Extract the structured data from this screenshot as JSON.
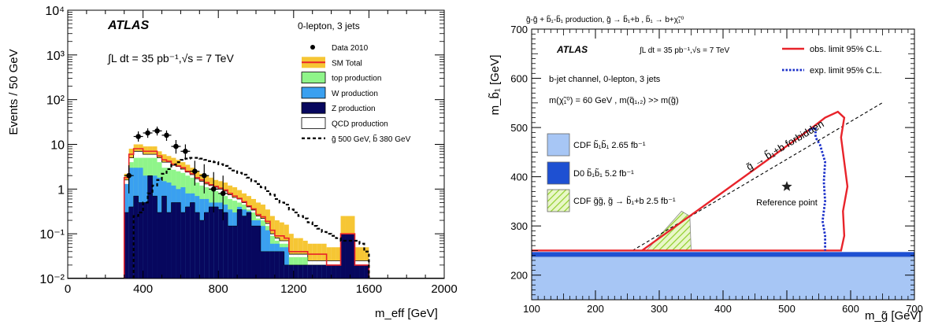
{
  "chart_data": [
    {
      "type": "bar",
      "experiment": "ATLAS",
      "luminosity": "∫L dt = 35 pb⁻¹,√s = 7 TeV",
      "channel": "0-lepton, 3 jets",
      "xlabel": "m_eff [GeV]",
      "ylabel": "Events / 50 GeV",
      "xlim": [
        0,
        2000
      ],
      "ylim": [
        0.01,
        10000
      ],
      "log_y": true,
      "x_ticks": [
        "0",
        "400",
        "800",
        "1200",
        "1600",
        "2000"
      ],
      "y_ticks": [
        "10⁻²",
        "10⁻¹",
        "1",
        "10",
        "10²",
        "10³",
        "10⁴"
      ],
      "legend_position": "top-right",
      "legend": [
        {
          "label": "Data 2010",
          "kind": "marker",
          "color": "#000000"
        },
        {
          "label": "SM Total",
          "kind": "line-fill",
          "color": "#e8232a",
          "fill": "#f6c634"
        },
        {
          "label": "top production",
          "kind": "fill",
          "color": "#8ff58a"
        },
        {
          "label": "W production",
          "kind": "fill",
          "color": "#3aa0f0"
        },
        {
          "label": "Z production",
          "kind": "fill",
          "color": "#07075e"
        },
        {
          "label": "QCD production",
          "kind": "fill",
          "color": "#ffffff"
        },
        {
          "label": "g̃ 500 GeV, b̃ 380 GeV",
          "kind": "dashed",
          "color": "#000000"
        }
      ],
      "bin_edges": [
        300,
        325,
        350,
        375,
        400,
        425,
        450,
        475,
        500,
        525,
        550,
        575,
        600,
        625,
        650,
        675,
        700,
        725,
        750,
        775,
        800,
        825,
        850,
        875,
        900,
        925,
        950,
        975,
        1000,
        1025,
        1050,
        1075,
        1100,
        1125,
        1150,
        1175,
        1200,
        1225,
        1250,
        1275,
        1300,
        1325,
        1350,
        1375,
        1400,
        1425,
        1450,
        1475,
        1500,
        1525,
        1550,
        1575,
        1600
      ],
      "series": [
        {
          "name": "Z production",
          "color": "#07075e",
          "values": [
            0.3,
            0.4,
            0.7,
            0.5,
            0.5,
            2,
            0.7,
            0.3,
            0.7,
            0.3,
            0.5,
            0.5,
            0.3,
            0.4,
            0.5,
            0.3,
            0.2,
            0.3,
            0.4,
            0.4,
            0.35,
            0.3,
            0.15,
            0.15,
            0.35,
            0.25,
            0.3,
            0.15,
            0.15,
            0.04,
            0.04,
            0.04,
            0.04,
            0.04,
            0.02,
            0.02,
            0.02,
            0.02,
            0.02,
            0.02,
            0.02,
            0.02,
            0.02,
            0.02,
            0.02,
            0.02,
            0.1,
            0.1,
            0.1,
            0.02,
            0.02,
            0.02
          ]
        },
        {
          "name": "W production",
          "color": "#3aa0f0",
          "values": [
            1.3,
            3,
            3,
            3,
            2,
            2,
            2,
            1.8,
            1.5,
            1.4,
            1.2,
            1.0,
            1.1,
            0.8,
            0.8,
            0.7,
            0.6,
            0.6,
            0.5,
            0.5,
            0.5,
            0.45,
            0.35,
            0.3,
            0.4,
            0.35,
            0.32,
            0.2,
            0.2,
            0.15,
            0.12,
            0.06,
            0.06,
            0.05,
            0.05,
            0.02,
            0.02,
            0.02,
            0.02,
            0.02,
            0.02,
            0.02,
            0.02,
            0.02,
            0.02,
            0.02,
            0.1,
            0.1,
            0.1,
            0.02,
            0.02,
            0.02
          ]
        },
        {
          "name": "top production",
          "color": "#8ff58a",
          "values": [
            1.3,
            4,
            5,
            5,
            5,
            5,
            5,
            4,
            3,
            3,
            2.7,
            2.5,
            2.3,
            2,
            1.8,
            1.4,
            1.2,
            1.1,
            1,
            0.9,
            0.8,
            0.7,
            0.6,
            0.55,
            0.5,
            0.45,
            0.35,
            0.3,
            0.22,
            0.2,
            0.15,
            0.09,
            0.07,
            0.06,
            0.06,
            0.03,
            0.03,
            0.03,
            0.03,
            0.02,
            0.02,
            0.02,
            0.02,
            0.02,
            0.02,
            0.02,
            0.1,
            0.1,
            0.1,
            0.02,
            0.02,
            0.02
          ]
        },
        {
          "name": "QCD production",
          "color": "#ffffff",
          "values": [
            1.6,
            5,
            7,
            7,
            6,
            6,
            6,
            5,
            4,
            4,
            3.4,
            3.2,
            2.8,
            2.4,
            2.1,
            1.7,
            1.5,
            1.3,
            1.2,
            1.1,
            1,
            0.9,
            0.75,
            0.65,
            0.6,
            0.5,
            0.4,
            0.34,
            0.25,
            0.22,
            0.17,
            0.1,
            0.08,
            0.07,
            0.07,
            0.035,
            0.035,
            0.035,
            0.035,
            0.025,
            0.025,
            0.025,
            0.025,
            0.025,
            0.025,
            0.025,
            0.1,
            0.1,
            0.1,
            0.025,
            0.025,
            0.025
          ]
        },
        {
          "name": "SM Total",
          "color": "#e8232a",
          "values": [
            1.8,
            6,
            8,
            8,
            7,
            7,
            7,
            5.5,
            4.5,
            4.2,
            3.6,
            3.3,
            3,
            2.5,
            2.2,
            1.8,
            1.6,
            1.4,
            1.25,
            1.15,
            1.05,
            0.95,
            0.8,
            0.7,
            0.62,
            0.52,
            0.42,
            0.36,
            0.27,
            0.24,
            0.19,
            0.12,
            0.09,
            0.09,
            0.08,
            0.04,
            0.04,
            0.04,
            0.04,
            0.035,
            0.035,
            0.035,
            0.035,
            0.02,
            0.02,
            0.02,
            0.1,
            0.1,
            0.1,
            0.02,
            0.02,
            0.02
          ]
        },
        {
          "name": "SM Total uncertainty",
          "color": "#f6c634",
          "values": [
            2.2,
            8,
            10,
            10,
            9,
            9,
            9,
            7,
            6,
            5.5,
            5,
            4.5,
            4,
            3.5,
            3,
            2.5,
            2.2,
            2,
            1.8,
            1.6,
            1.5,
            1.4,
            1.2,
            1.1,
            0.95,
            0.8,
            0.7,
            0.6,
            0.5,
            0.45,
            0.35,
            0.25,
            0.2,
            0.18,
            0.16,
            0.1,
            0.08,
            0.08,
            0.07,
            0.06,
            0.06,
            0.06,
            0.06,
            0.05,
            0.05,
            0.05,
            0.25,
            0.25,
            0.25,
            0.05,
            0.05,
            0.05
          ]
        }
      ],
      "signal": {
        "name": "g̃ 500 GeV, b̃ 380 GeV",
        "bin_edges": [
          350,
          375,
          400,
          425,
          450,
          475,
          500,
          525,
          550,
          575,
          600,
          625,
          650,
          675,
          700,
          725,
          750,
          775,
          800,
          825,
          850,
          875,
          900,
          925,
          950,
          975,
          1000,
          1025,
          1050,
          1075,
          1100,
          1125,
          1150,
          1175,
          1200,
          1225,
          1250,
          1275,
          1300,
          1325,
          1350,
          1375,
          1400,
          1425,
          1450,
          1475,
          1500,
          1525,
          1550,
          1575,
          1600
        ],
        "values": [
          0.25,
          0.3,
          0.5,
          0.8,
          1.2,
          1.6,
          2.2,
          2.8,
          3.5,
          4.0,
          4.5,
          4.8,
          5.0,
          5.0,
          4.8,
          4.5,
          4.2,
          4.0,
          3.6,
          3.3,
          2.9,
          2.6,
          2.3,
          2.1,
          1.8,
          1.5,
          1.3,
          1.1,
          0.9,
          0.75,
          0.6,
          0.5,
          0.45,
          0.35,
          0.3,
          0.25,
          0.22,
          0.18,
          0.15,
          0.13,
          0.11,
          0.1,
          0.09,
          0.08,
          0.07,
          0.07,
          0.07,
          0.07,
          0.06,
          0.04
        ]
      },
      "data_points": {
        "name": "Data 2010",
        "x": [
          325,
          375,
          425,
          475,
          525,
          575,
          625,
          675,
          725,
          775,
          825
        ],
        "y": [
          2,
          15,
          18,
          20,
          16,
          9,
          7,
          2.5,
          2,
          1,
          0.8
        ],
        "err_lo": [
          1.2,
          3.5,
          4,
          4.2,
          4,
          2.8,
          2.5,
          1.3,
          1.2,
          0.7,
          0.6
        ],
        "err_hi": [
          1.4,
          4.5,
          4.8,
          5,
          4.5,
          3.5,
          3,
          1.8,
          1.6,
          1.4,
          1.2
        ]
      }
    },
    {
      "type": "line",
      "title": "g̃-g̃ + b̃₁-b̃₁ production, g̃ → b̃₁+b , b̃₁ → b+χ̃₁⁰",
      "experiment": "ATLAS",
      "luminosity": "∫L dt = 35 pb⁻¹,√s = 7 TeV",
      "channel": "b-jet channel, 0-lepton, 3 jets",
      "assumption": "m(χ̃₁⁰) = 60 GeV , m(q̃₁,₂) >> m(g̃)",
      "xlabel": "m_g̃ [GeV]",
      "ylabel": "m_b̃₁ [GeV]",
      "xlim": [
        100,
        700
      ],
      "ylim": [
        150,
        700
      ],
      "x_ticks": [
        "100",
        "200",
        "300",
        "400",
        "500",
        "600",
        "700"
      ],
      "y_ticks": [
        "200",
        "300",
        "400",
        "500",
        "600",
        "700"
      ],
      "series": [
        {
          "name": "obs. limit 95% C.L.",
          "color": "#e8232a",
          "style": "solid",
          "x": [
            273,
            540,
            560,
            580,
            590,
            585,
            590,
            595,
            588,
            590,
            585,
            100
          ],
          "y": [
            250,
            500,
            520,
            532,
            520,
            480,
            430,
            380,
            330,
            280,
            250,
            250
          ]
        },
        {
          "name": "exp. limit 95% C.L.",
          "color": "#1a2fc9",
          "style": "dotted",
          "x": [
            535,
            545,
            545,
            552,
            560,
            558,
            560,
            556,
            560,
            560
          ],
          "y": [
            495,
            500,
            480,
            465,
            430,
            390,
            350,
            310,
            280,
            250
          ]
        }
      ],
      "forbidden_line": {
        "label": "g̃ → b̃₁+b forbidden",
        "x": [
          258,
          652
        ],
        "y": [
          250,
          552
        ]
      },
      "regions": [
        {
          "name": "CDF b̃₁b̃₁ 2.65 fb⁻¹",
          "color": "#a7c6f5",
          "x": [
            100,
            700
          ],
          "y": [
            150,
            237
          ]
        },
        {
          "name": "D0 b̃₁b̃₁ 5.2 fb⁻¹",
          "color": "#1e50d2",
          "x": [
            100,
            700
          ],
          "y": [
            237,
            247
          ]
        },
        {
          "name": "CDF g̃g̃, g̃ → b̃₁+b 2.5 fb⁻¹",
          "color": "#b8e065",
          "x": [
            280,
            335,
            348,
            350,
            280
          ],
          "y": [
            250,
            330,
            320,
            250,
            250
          ]
        }
      ],
      "reference_point": {
        "label": "Reference point",
        "x": 500,
        "y": 380
      },
      "legend": [
        {
          "label": "obs. limit 95% C.L.",
          "kind": "line",
          "color": "#e8232a"
        },
        {
          "label": "exp. limit 95% C.L.",
          "kind": "dotted",
          "color": "#1a2fc9"
        }
      ]
    }
  ]
}
